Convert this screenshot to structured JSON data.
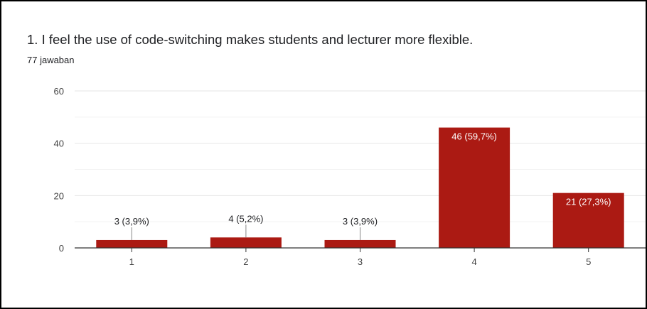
{
  "title": "1. I feel the use of code-switching makes students and lecturer more flexible.",
  "subtitle": "77 jawaban",
  "colors": {
    "bar": "#ab1a13",
    "grid": "#e6e6e6",
    "axis": "#333333",
    "label_inside": "#ffffff",
    "label_outside": "#202124"
  },
  "chart_data": {
    "type": "bar",
    "title": "1. I feel the use of code-switching makes students and lecturer more flexible.",
    "subtitle": "77 jawaban",
    "categories": [
      "1",
      "2",
      "3",
      "4",
      "5"
    ],
    "values": [
      3,
      4,
      3,
      46,
      21
    ],
    "data_labels": [
      "3 (3,9%)",
      "4 (5,2%)",
      "3 (3,9%)",
      "46 (59,7%)",
      "21 (27,3%)"
    ],
    "ylim": [
      0,
      60
    ],
    "yticks": [
      0,
      20,
      40,
      60
    ],
    "minor_gridlines": [
      10,
      30,
      50
    ],
    "xlabel": "",
    "ylabel": "",
    "grid": true,
    "legend": "none"
  }
}
